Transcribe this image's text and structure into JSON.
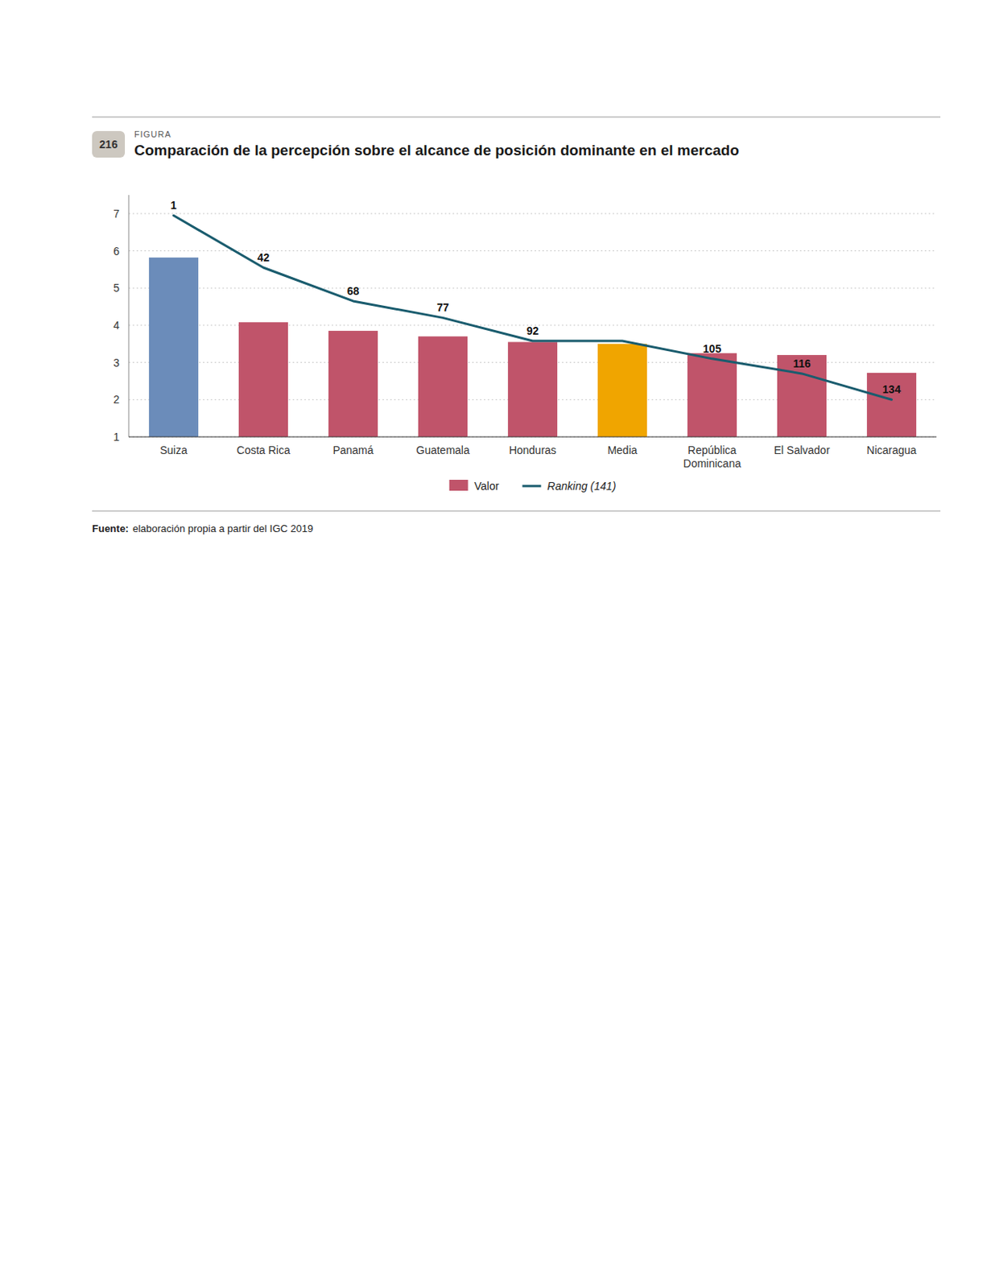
{
  "chart_data": {
    "type": "bar",
    "figure_label": "FIGURA",
    "figure_number": "216",
    "title": "Comparación de la percepción sobre el alcance de posición dominante en el mercado",
    "categories": [
      "Suiza",
      "Costa Rica",
      "Panamá",
      "Guatemala",
      "Honduras",
      "Media",
      "República\nDominicana",
      "El Salvador",
      "Nicaragua"
    ],
    "series": [
      {
        "name": "Valor",
        "type": "bar",
        "color": "#c0546a",
        "colors": [
          "#6b8cba",
          "#c0546a",
          "#c0546a",
          "#c0546a",
          "#c0546a",
          "#f0a500",
          "#c0546a",
          "#c0546a",
          "#c0546a"
        ],
        "values": [
          5.82,
          4.08,
          3.85,
          3.7,
          3.55,
          3.5,
          3.25,
          3.2,
          2.72
        ]
      },
      {
        "name": "Ranking (141)",
        "type": "line",
        "color": "#1a5c6e",
        "values": [
          6.95,
          5.55,
          4.65,
          4.2,
          3.58,
          3.58,
          3.1,
          2.7,
          2.0
        ],
        "rankings": [
          1,
          42,
          68,
          77,
          92,
          null,
          105,
          116,
          134
        ]
      }
    ],
    "ylim": [
      1,
      7.5
    ],
    "yticks": [
      1,
      2,
      3,
      4,
      5,
      6,
      7
    ],
    "grid": true,
    "legend": "bottom",
    "source_label": "Fuente:",
    "source": "elaboración propia a partir del IGC 2019"
  }
}
